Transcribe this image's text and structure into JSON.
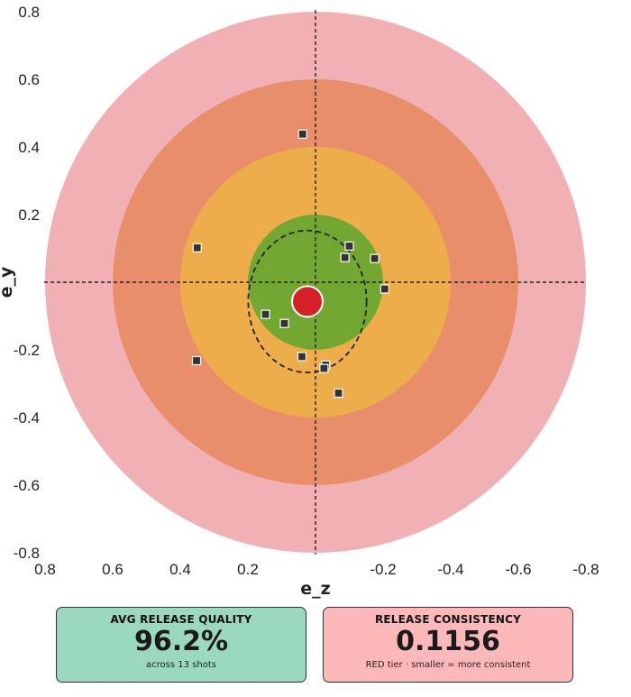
{
  "chart_data": {
    "type": "scatter",
    "xlabel": "e_z",
    "ylabel": "e_y",
    "xlim": [
      0.8,
      -0.8
    ],
    "ylim": [
      -0.8,
      0.8
    ],
    "x_ticks": [
      "0.8",
      "0.6",
      "0.4",
      "0.2",
      "-0.2",
      "-0.4",
      "-0.6",
      "-0.8"
    ],
    "y_ticks": [
      "0.8",
      "0.6",
      "0.4",
      "0.2",
      "-0.2",
      "-0.4",
      "-0.6",
      "-0.8"
    ],
    "x_axis_reversed": true,
    "rings": [
      {
        "radius": 0.8,
        "color": "#f0b0b4"
      },
      {
        "radius": 0.6,
        "color": "#e88e6b"
      },
      {
        "radius": 0.4,
        "color": "#ecad4a"
      },
      {
        "radius": 0.2,
        "color": "#72a832"
      }
    ],
    "crosshair": true,
    "mean_point": {
      "x": 0.024,
      "y": -0.057,
      "color": "#d42027"
    },
    "ellipse": {
      "cx": 0.024,
      "cy": -0.057,
      "rx": 0.175,
      "ry": 0.21
    },
    "points": [
      {
        "x": 0.038,
        "y": 0.438
      },
      {
        "x": 0.35,
        "y": 0.102
      },
      {
        "x": -0.1,
        "y": 0.107
      },
      {
        "x": -0.087,
        "y": 0.073
      },
      {
        "x": -0.175,
        "y": 0.07
      },
      {
        "x": -0.205,
        "y": -0.02
      },
      {
        "x": 0.148,
        "y": -0.095
      },
      {
        "x": 0.092,
        "y": -0.122
      },
      {
        "x": 0.04,
        "y": -0.22
      },
      {
        "x": -0.03,
        "y": -0.245
      },
      {
        "x": -0.025,
        "y": -0.255
      },
      {
        "x": -0.068,
        "y": -0.328
      },
      {
        "x": 0.352,
        "y": -0.232
      }
    ]
  },
  "cards": [
    {
      "title": "AVG RELEASE QUALITY",
      "value": "96.2%",
      "subtitle": "across 13 shots",
      "color": "#9ad9bd"
    },
    {
      "title": "RELEASE CONSISTENCY",
      "value": "0.1156",
      "subtitle": "RED tier · smaller = more consistent",
      "color": "#fdb9b9"
    }
  ]
}
